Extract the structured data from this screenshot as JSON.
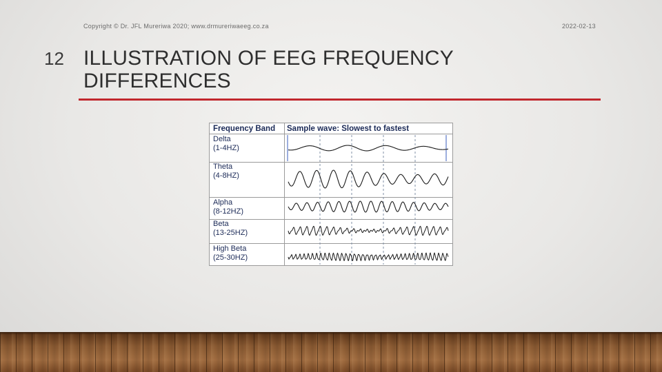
{
  "footer": {
    "copyright": "Copyright © Dr. JFL Mureriwa 2020;  www.drmureriwaeeg.co.za",
    "date": "2022-02-13"
  },
  "slide": {
    "number": "12",
    "title": "ILLUSTRATION OF EEG FREQUENCY DIFFERENCES",
    "accent_color": "#c1272d"
  },
  "table": {
    "header_band": "Frequency Band",
    "header_wave": "Sample wave: Slowest to fastest",
    "bands": [
      {
        "name": "Delta",
        "range": "(1-4HZ)"
      },
      {
        "name": "Theta",
        "range": "(4-8HZ)"
      },
      {
        "name": "Alpha",
        "range": "(8-12HZ)"
      },
      {
        "name": "Beta",
        "range": "(13-25HZ)"
      },
      {
        "name": "High Beta",
        "range": "(25-30HZ)"
      }
    ]
  }
}
